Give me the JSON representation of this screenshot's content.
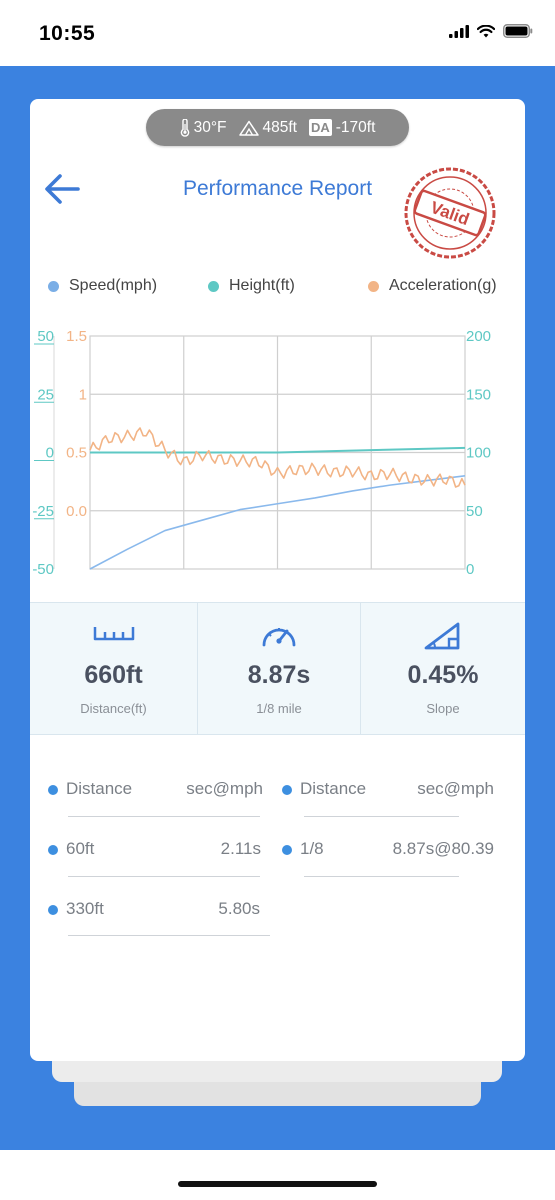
{
  "status": {
    "time": "10:55"
  },
  "conditions": {
    "temperature": "30°F",
    "elevation": "485ft",
    "da_badge": "DA",
    "density_altitude": "-170ft"
  },
  "header": {
    "title": "Performance Report",
    "stamp_text": "Valid"
  },
  "legend": [
    {
      "label": "Speed(mph)",
      "color": "#7aaee6"
    },
    {
      "label": "Height(ft)",
      "color": "#5ec8c4"
    },
    {
      "label": "Acceleration(g)",
      "color": "#f2b486"
    }
  ],
  "chart_data": {
    "type": "line",
    "left_axis_height": {
      "ticks": [
        "50",
        "25",
        "0",
        "-25",
        "-50"
      ],
      "range": [
        -50,
        50
      ],
      "color": "#5ec8c4"
    },
    "left_axis_accel": {
      "ticks": [
        "1.5",
        "1",
        "0.5",
        "0.0"
      ],
      "range": [
        -0.5,
        1.5
      ],
      "color": "#f2b486"
    },
    "right_axis_speed": {
      "ticks": [
        "200",
        "150",
        "100",
        "50",
        "0"
      ],
      "range": [
        0,
        200
      ],
      "color": "#5ec8c4"
    },
    "grid": true,
    "series": [
      {
        "name": "Speed(mph)",
        "axis": "right",
        "x": [
          0,
          0.1,
          0.2,
          0.3,
          0.4,
          0.5,
          0.6,
          0.7,
          0.8,
          0.9,
          1.0
        ],
        "values": [
          0,
          17,
          33,
          42,
          51,
          56,
          61,
          67,
          72,
          76,
          80
        ]
      },
      {
        "name": "Height(ft)",
        "axis": "left",
        "x": [
          0,
          0.25,
          0.5,
          0.75,
          1.0
        ],
        "values": [
          0,
          0,
          0,
          1,
          2
        ]
      },
      {
        "name": "Acceleration(g)",
        "axis": "left2",
        "x": [
          0,
          0.05,
          0.1,
          0.15,
          0.2,
          0.25,
          0.3,
          0.35,
          0.4,
          0.45,
          0.5,
          0.55,
          0.6,
          0.65,
          0.7,
          0.75,
          0.8,
          0.85,
          0.9,
          0.95,
          1.0
        ],
        "values": [
          0.52,
          0.62,
          0.64,
          0.68,
          0.52,
          0.42,
          0.48,
          0.44,
          0.43,
          0.42,
          0.32,
          0.35,
          0.36,
          0.33,
          0.34,
          0.3,
          0.32,
          0.28,
          0.26,
          0.27,
          0.22
        ]
      }
    ]
  },
  "stats": [
    {
      "value": "660ft",
      "label": "Distance(ft)",
      "icon": "ruler-icon"
    },
    {
      "value": "8.87s",
      "label": "1/8 mile",
      "icon": "speedometer-icon"
    },
    {
      "value": "0.45%",
      "label": "Slope",
      "icon": "slope-icon"
    }
  ],
  "splits": {
    "headers": {
      "distance": "Distance",
      "time": "sec@mph"
    },
    "left": [
      {
        "distance": "60ft",
        "time": "2.11s"
      },
      {
        "distance": "330ft",
        "time": "5.80s"
      }
    ],
    "right": [
      {
        "distance": "1/8",
        "time": "8.87s@80.39"
      }
    ]
  }
}
